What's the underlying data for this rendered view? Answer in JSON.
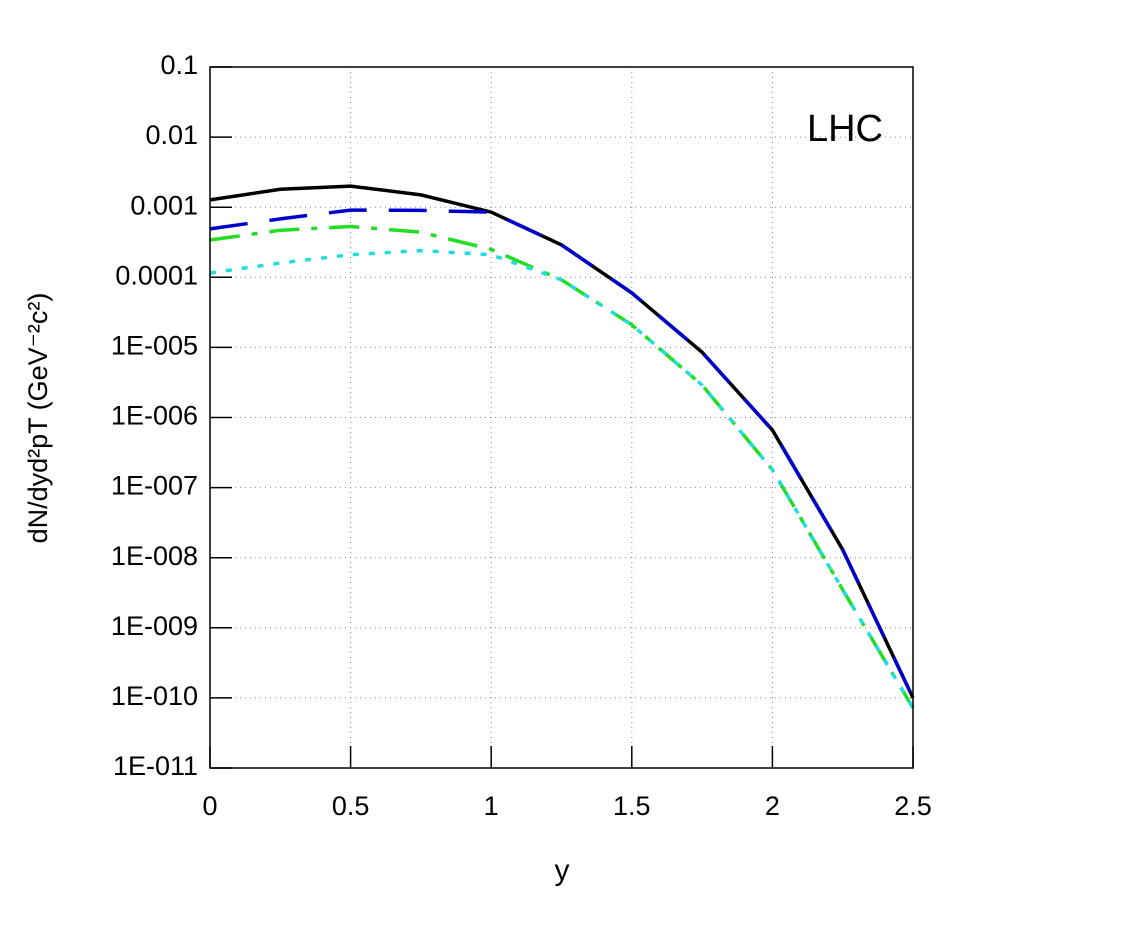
{
  "chart_data": {
    "type": "line",
    "annotation": "LHC",
    "xlabel": "y",
    "ylabel": "dN/dyd²pT (GeV⁻²c²)",
    "x": [
      0,
      0.25,
      0.5,
      0.75,
      1.0,
      1.25,
      1.5,
      1.75,
      2.0,
      2.25,
      2.5
    ],
    "xlim": [
      0,
      2.5
    ],
    "xticks": [
      0,
      0.5,
      1,
      1.5,
      2,
      2.5
    ],
    "ylim": [
      1e-11,
      0.1
    ],
    "log_y": true,
    "grid": true,
    "yticks": [
      0.1,
      0.01,
      0.001,
      0.0001,
      {
        "value": 1e-05,
        "label": "1E-005"
      },
      {
        "value": 1e-06,
        "label": "1E-006"
      },
      {
        "value": 1e-07,
        "label": "1E-007"
      },
      {
        "value": 1e-08,
        "label": "1E-008"
      },
      {
        "value": 1e-09,
        "label": "1E-009"
      },
      {
        "value": 1e-10,
        "label": "1E-010"
      },
      {
        "value": 1e-11,
        "label": "1E-011"
      }
    ],
    "series": [
      {
        "color": "#000000",
        "linestyle": "solid",
        "values": [
          0.00127,
          0.0018,
          0.002,
          0.0015,
          0.00085,
          0.00029,
          6e-05,
          8.5e-06,
          6.6e-07,
          1.3e-08,
          1e-10
        ]
      },
      {
        "color": "#0000cc",
        "linestyle": "dashed",
        "values": [
          0.00049,
          0.00068,
          0.00091,
          0.0009,
          0.00085,
          0.00029,
          6e-05,
          8.5e-06,
          6.6e-07,
          1.3e-08,
          1e-10
        ]
      },
      {
        "color": "#22dd22",
        "linestyle": "dashdot",
        "values": [
          0.00034,
          0.00047,
          0.00053,
          0.00044,
          0.00025,
          9.2e-05,
          2.1e-05,
          2.9e-06,
          1.8e-07,
          3.5e-09,
          7.2e-11
        ]
      },
      {
        "color": "#22dddd",
        "linestyle": "dotted",
        "values": [
          0.000115,
          0.00016,
          0.00021,
          0.00024,
          0.00021,
          9.2e-05,
          2.1e-05,
          2.9e-06,
          1.8e-07,
          3.5e-09,
          7.2e-11
        ]
      }
    ]
  }
}
